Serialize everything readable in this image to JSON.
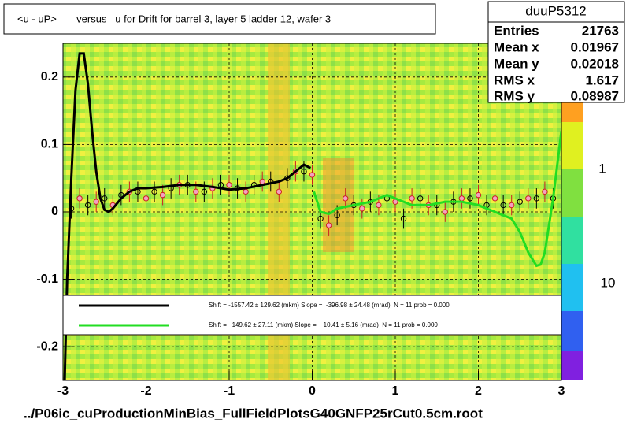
{
  "chart_data": {
    "type": "scatter",
    "title": "<u - uP>       versus   u for Drift for barrel 3, layer 5 ladder 12, wafer 3",
    "footer": "../P06ic_cuProductionMinBias_FullFieldPlotsG40GNFP25rCut0.5cm.root",
    "xlim": [
      -3,
      3
    ],
    "ylim": [
      -0.25,
      0.25
    ],
    "xticks": [
      -3,
      -2,
      -1,
      0,
      1,
      2,
      3
    ],
    "yticks": [
      -0.2,
      -0.1,
      0,
      0.1,
      0.2
    ],
    "grid": true,
    "stats": {
      "title": "duuP5312",
      "rows": [
        [
          "Entries",
          "21763"
        ],
        [
          "Mean x",
          "0.01967"
        ],
        [
          "Mean y",
          "0.02018"
        ],
        [
          "RMS x",
          "1.617"
        ],
        [
          "RMS y",
          "0.08987"
        ]
      ]
    },
    "palette_labels": [
      "1",
      "10"
    ],
    "points": [
      {
        "color": "#000000",
        "fill": "none",
        "error": 0.015,
        "x": [
          -2.9,
          -2.7,
          -2.5,
          -2.3,
          -2.1,
          -1.9,
          -1.7,
          -1.5,
          -1.3,
          -1.1,
          -0.9,
          -0.7,
          -0.5,
          -0.3,
          -0.1,
          0.1,
          0.3,
          0.5,
          0.7,
          0.9,
          1.1,
          1.3,
          1.5,
          1.7,
          1.9,
          2.1,
          2.3,
          2.5,
          2.7,
          2.9
        ],
        "values": [
          0.005,
          0.01,
          0.02,
          0.025,
          0.03,
          0.03,
          0.035,
          0.04,
          0.03,
          0.04,
          0.035,
          0.04,
          0.045,
          0.05,
          0.06,
          -0.01,
          -0.005,
          0.01,
          0.015,
          0.02,
          -0.01,
          0.02,
          0.01,
          0.015,
          0.02,
          0.01,
          0.01,
          0.015,
          0.02,
          0.02
        ]
      },
      {
        "color": "#cc2222",
        "fill": "#f4a0c0",
        "error": 0.015,
        "x": [
          -2.8,
          -2.6,
          -2.4,
          -2.2,
          -2.0,
          -1.8,
          -1.6,
          -1.4,
          -1.2,
          -1.0,
          -0.8,
          -0.6,
          -0.4,
          -0.2,
          0.0,
          0.2,
          0.4,
          0.6,
          0.8,
          1.0,
          1.2,
          1.4,
          1.6,
          1.8,
          2.0,
          2.2,
          2.4,
          2.6,
          2.8
        ],
        "values": [
          0.02,
          0.015,
          0.01,
          0.03,
          0.02,
          0.025,
          0.04,
          0.03,
          0.035,
          0.04,
          0.03,
          0.045,
          0.03,
          0.06,
          0.055,
          -0.02,
          0.02,
          0.005,
          0.01,
          0.015,
          0.02,
          0.01,
          0.0,
          0.02,
          0.025,
          0.02,
          0.01,
          0.02,
          0.03
        ]
      }
    ],
    "series": [
      {
        "name": "Shift = -1557.42 ± 129.62 (mkm) Slope =  -396.98 ± 24.48 (mrad)  N = 11 prob = 0.000",
        "color": "#000000",
        "x": [
          -2.98,
          -2.95,
          -2.9,
          -2.85,
          -2.8,
          -2.75,
          -2.7,
          -2.65,
          -2.6,
          -2.55,
          -2.5,
          -2.45,
          -2.4,
          -2.3,
          -2.2,
          -2.1,
          -2.0,
          -1.8,
          -1.6,
          -1.4,
          -1.2,
          -1.0,
          -0.8,
          -0.6,
          -0.4,
          -0.3,
          -0.2,
          -0.1,
          -0.02
        ],
        "values": [
          -0.25,
          -0.1,
          0.05,
          0.18,
          0.235,
          0.235,
          0.19,
          0.12,
          0.06,
          0.02,
          0.003,
          0.0,
          0.005,
          0.02,
          0.03,
          0.035,
          0.035,
          0.037,
          0.04,
          0.04,
          0.037,
          0.033,
          0.035,
          0.04,
          0.045,
          0.05,
          0.06,
          0.07,
          0.065
        ]
      },
      {
        "name": "Shift =   149.62 ± 27.11 (mkm) Slope =    10.41 ± 5.16 (mrad)  N = 11 prob = 0.000",
        "color": "#22dd22",
        "x": [
          0.02,
          0.1,
          0.2,
          0.3,
          0.5,
          0.7,
          0.9,
          1.0,
          1.2,
          1.4,
          1.6,
          1.8,
          2.0,
          2.2,
          2.4,
          2.5,
          2.6,
          2.7,
          2.75,
          2.8,
          2.9,
          2.95,
          3.0
        ],
        "values": [
          0.03,
          0.0,
          -0.003,
          0.005,
          0.01,
          0.015,
          0.025,
          0.02,
          0.01,
          0.01,
          0.015,
          0.015,
          0.01,
          0.0,
          -0.01,
          -0.03,
          -0.06,
          -0.08,
          -0.078,
          -0.06,
          0.02,
          0.07,
          0.12
        ]
      }
    ]
  }
}
